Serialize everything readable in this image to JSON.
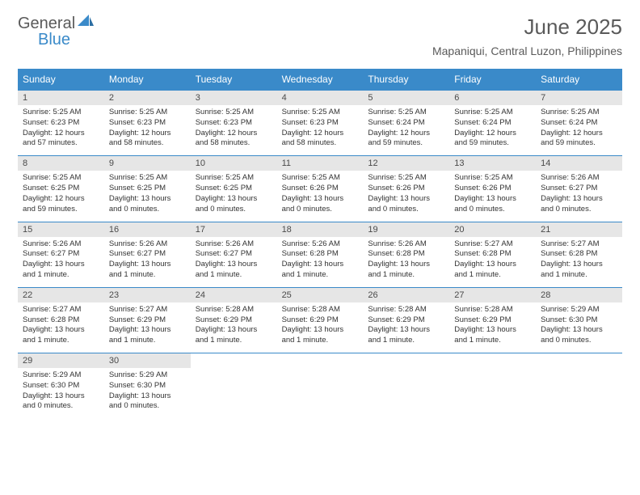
{
  "logo": {
    "general": "General",
    "blue": "Blue"
  },
  "title": "June 2025",
  "location": "Mapaniqui, Central Luzon, Philippines",
  "day_headers": [
    "Sunday",
    "Monday",
    "Tuesday",
    "Wednesday",
    "Thursday",
    "Friday",
    "Saturday"
  ],
  "header_bg": "#3a8ac9",
  "header_fg": "#ffffff",
  "daynum_bg": "#e6e6e6",
  "border_color": "#3a8ac9",
  "weeks": [
    {
      "nums": [
        "1",
        "2",
        "3",
        "4",
        "5",
        "6",
        "7"
      ],
      "cells": [
        {
          "sunrise": "5:25 AM",
          "sunset": "6:23 PM",
          "daylight": "12 hours and 57 minutes."
        },
        {
          "sunrise": "5:25 AM",
          "sunset": "6:23 PM",
          "daylight": "12 hours and 58 minutes."
        },
        {
          "sunrise": "5:25 AM",
          "sunset": "6:23 PM",
          "daylight": "12 hours and 58 minutes."
        },
        {
          "sunrise": "5:25 AM",
          "sunset": "6:23 PM",
          "daylight": "12 hours and 58 minutes."
        },
        {
          "sunrise": "5:25 AM",
          "sunset": "6:24 PM",
          "daylight": "12 hours and 59 minutes."
        },
        {
          "sunrise": "5:25 AM",
          "sunset": "6:24 PM",
          "daylight": "12 hours and 59 minutes."
        },
        {
          "sunrise": "5:25 AM",
          "sunset": "6:24 PM",
          "daylight": "12 hours and 59 minutes."
        }
      ]
    },
    {
      "nums": [
        "8",
        "9",
        "10",
        "11",
        "12",
        "13",
        "14"
      ],
      "cells": [
        {
          "sunrise": "5:25 AM",
          "sunset": "6:25 PM",
          "daylight": "12 hours and 59 minutes."
        },
        {
          "sunrise": "5:25 AM",
          "sunset": "6:25 PM",
          "daylight": "13 hours and 0 minutes."
        },
        {
          "sunrise": "5:25 AM",
          "sunset": "6:25 PM",
          "daylight": "13 hours and 0 minutes."
        },
        {
          "sunrise": "5:25 AM",
          "sunset": "6:26 PM",
          "daylight": "13 hours and 0 minutes."
        },
        {
          "sunrise": "5:25 AM",
          "sunset": "6:26 PM",
          "daylight": "13 hours and 0 minutes."
        },
        {
          "sunrise": "5:25 AM",
          "sunset": "6:26 PM",
          "daylight": "13 hours and 0 minutes."
        },
        {
          "sunrise": "5:26 AM",
          "sunset": "6:27 PM",
          "daylight": "13 hours and 0 minutes."
        }
      ]
    },
    {
      "nums": [
        "15",
        "16",
        "17",
        "18",
        "19",
        "20",
        "21"
      ],
      "cells": [
        {
          "sunrise": "5:26 AM",
          "sunset": "6:27 PM",
          "daylight": "13 hours and 1 minute."
        },
        {
          "sunrise": "5:26 AM",
          "sunset": "6:27 PM",
          "daylight": "13 hours and 1 minute."
        },
        {
          "sunrise": "5:26 AM",
          "sunset": "6:27 PM",
          "daylight": "13 hours and 1 minute."
        },
        {
          "sunrise": "5:26 AM",
          "sunset": "6:28 PM",
          "daylight": "13 hours and 1 minute."
        },
        {
          "sunrise": "5:26 AM",
          "sunset": "6:28 PM",
          "daylight": "13 hours and 1 minute."
        },
        {
          "sunrise": "5:27 AM",
          "sunset": "6:28 PM",
          "daylight": "13 hours and 1 minute."
        },
        {
          "sunrise": "5:27 AM",
          "sunset": "6:28 PM",
          "daylight": "13 hours and 1 minute."
        }
      ]
    },
    {
      "nums": [
        "22",
        "23",
        "24",
        "25",
        "26",
        "27",
        "28"
      ],
      "cells": [
        {
          "sunrise": "5:27 AM",
          "sunset": "6:28 PM",
          "daylight": "13 hours and 1 minute."
        },
        {
          "sunrise": "5:27 AM",
          "sunset": "6:29 PM",
          "daylight": "13 hours and 1 minute."
        },
        {
          "sunrise": "5:28 AM",
          "sunset": "6:29 PM",
          "daylight": "13 hours and 1 minute."
        },
        {
          "sunrise": "5:28 AM",
          "sunset": "6:29 PM",
          "daylight": "13 hours and 1 minute."
        },
        {
          "sunrise": "5:28 AM",
          "sunset": "6:29 PM",
          "daylight": "13 hours and 1 minute."
        },
        {
          "sunrise": "5:28 AM",
          "sunset": "6:29 PM",
          "daylight": "13 hours and 1 minute."
        },
        {
          "sunrise": "5:29 AM",
          "sunset": "6:30 PM",
          "daylight": "13 hours and 0 minutes."
        }
      ]
    },
    {
      "nums": [
        "29",
        "30",
        "",
        "",
        "",
        "",
        ""
      ],
      "cells": [
        {
          "sunrise": "5:29 AM",
          "sunset": "6:30 PM",
          "daylight": "13 hours and 0 minutes."
        },
        {
          "sunrise": "5:29 AM",
          "sunset": "6:30 PM",
          "daylight": "13 hours and 0 minutes."
        },
        null,
        null,
        null,
        null,
        null
      ]
    }
  ],
  "labels": {
    "sunrise": "Sunrise:",
    "sunset": "Sunset:",
    "daylight": "Daylight:"
  }
}
